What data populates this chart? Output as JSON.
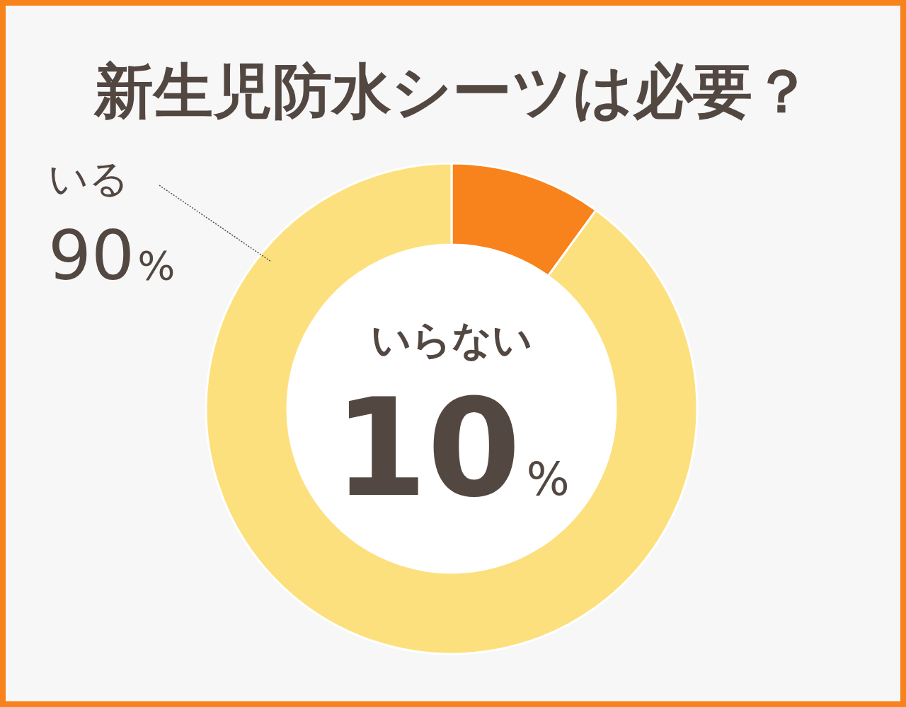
{
  "chart_data": {
    "type": "donut",
    "title": "新生児防水シーツは必要？",
    "categories": [
      "いらない",
      "いる"
    ],
    "values": [
      10,
      90
    ],
    "colors": [
      "#f8821b",
      "#fde07e"
    ],
    "value_labels": [
      "10%",
      "90%"
    ]
  }
}
